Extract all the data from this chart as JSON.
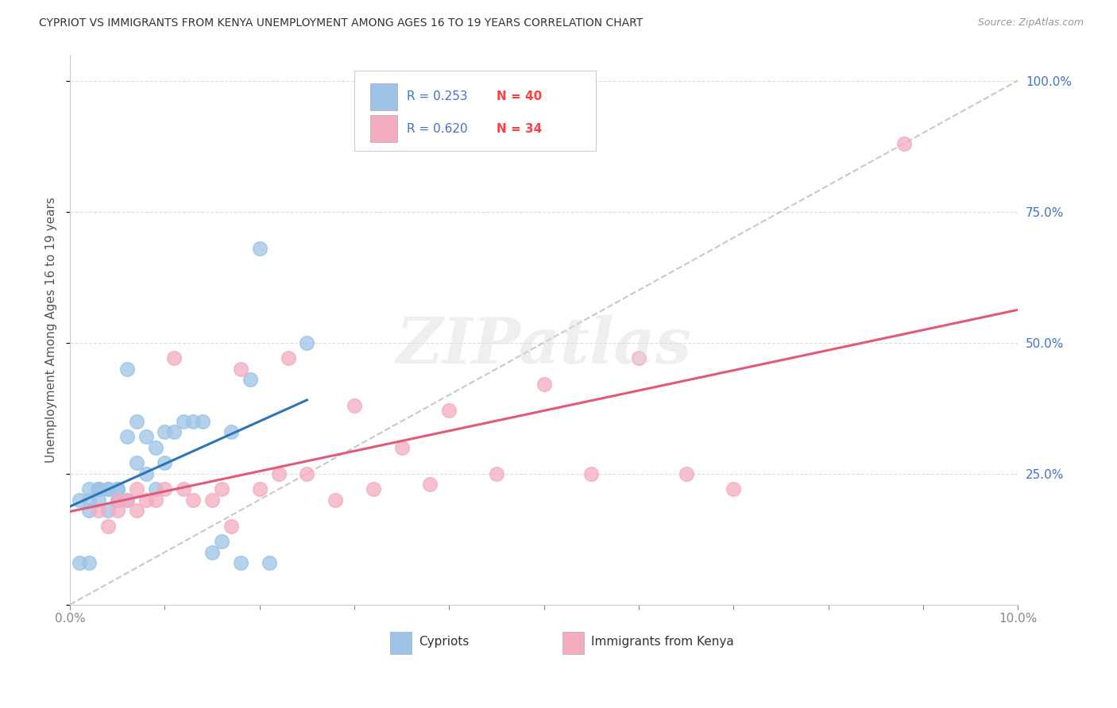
{
  "title": "CYPRIOT VS IMMIGRANTS FROM KENYA UNEMPLOYMENT AMONG AGES 16 TO 19 YEARS CORRELATION CHART",
  "source": "Source: ZipAtlas.com",
  "ylabel": "Unemployment Among Ages 16 to 19 years",
  "legend_r1": "R = 0.253",
  "legend_n1": "N = 40",
  "legend_r2": "R = 0.620",
  "legend_n2": "N = 34",
  "cypriot_label": "Cypriots",
  "kenya_label": "Immigrants from Kenya",
  "cypriot_color": "#9DC3E6",
  "kenya_color": "#F4ACBF",
  "cypriot_line_color": "#2E75B6",
  "kenya_line_color": "#E05A7A",
  "diagonal_color": "#BBBBBB",
  "r_text_color": "#4472C4",
  "n_text_color": "#FF4040",
  "watermark_text": "ZIPatlas",
  "watermark_color": "#DDDDDD",
  "ytick_color": "#4472C4",
  "xtick_color": "#888888",
  "title_color": "#333333",
  "source_color": "#999999",
  "ylabel_color": "#555555",
  "xlim": [
    0.0,
    0.1
  ],
  "ylim": [
    0.0,
    1.05
  ],
  "cypriot_x": [
    0.001,
    0.001,
    0.002,
    0.002,
    0.002,
    0.002,
    0.003,
    0.003,
    0.003,
    0.003,
    0.004,
    0.004,
    0.004,
    0.005,
    0.005,
    0.005,
    0.005,
    0.006,
    0.006,
    0.006,
    0.007,
    0.007,
    0.008,
    0.008,
    0.009,
    0.009,
    0.01,
    0.01,
    0.011,
    0.012,
    0.013,
    0.014,
    0.015,
    0.016,
    0.017,
    0.018,
    0.019,
    0.02,
    0.021,
    0.025
  ],
  "cypriot_y": [
    0.2,
    0.08,
    0.22,
    0.2,
    0.18,
    0.08,
    0.22,
    0.2,
    0.22,
    0.22,
    0.22,
    0.18,
    0.22,
    0.2,
    0.22,
    0.2,
    0.22,
    0.2,
    0.32,
    0.45,
    0.27,
    0.35,
    0.25,
    0.32,
    0.22,
    0.3,
    0.27,
    0.33,
    0.33,
    0.35,
    0.35,
    0.35,
    0.1,
    0.12,
    0.33,
    0.08,
    0.43,
    0.68,
    0.08,
    0.5
  ],
  "kenya_x": [
    0.003,
    0.004,
    0.005,
    0.005,
    0.006,
    0.007,
    0.007,
    0.008,
    0.009,
    0.01,
    0.011,
    0.012,
    0.013,
    0.015,
    0.016,
    0.017,
    0.018,
    0.02,
    0.022,
    0.023,
    0.025,
    0.028,
    0.03,
    0.032,
    0.035,
    0.038,
    0.04,
    0.045,
    0.05,
    0.055,
    0.06,
    0.065,
    0.07,
    0.088
  ],
  "kenya_y": [
    0.18,
    0.15,
    0.2,
    0.18,
    0.2,
    0.18,
    0.22,
    0.2,
    0.2,
    0.22,
    0.47,
    0.22,
    0.2,
    0.2,
    0.22,
    0.15,
    0.45,
    0.22,
    0.25,
    0.47,
    0.25,
    0.2,
    0.38,
    0.22,
    0.3,
    0.23,
    0.37,
    0.25,
    0.42,
    0.25,
    0.47,
    0.25,
    0.22,
    0.88
  ]
}
